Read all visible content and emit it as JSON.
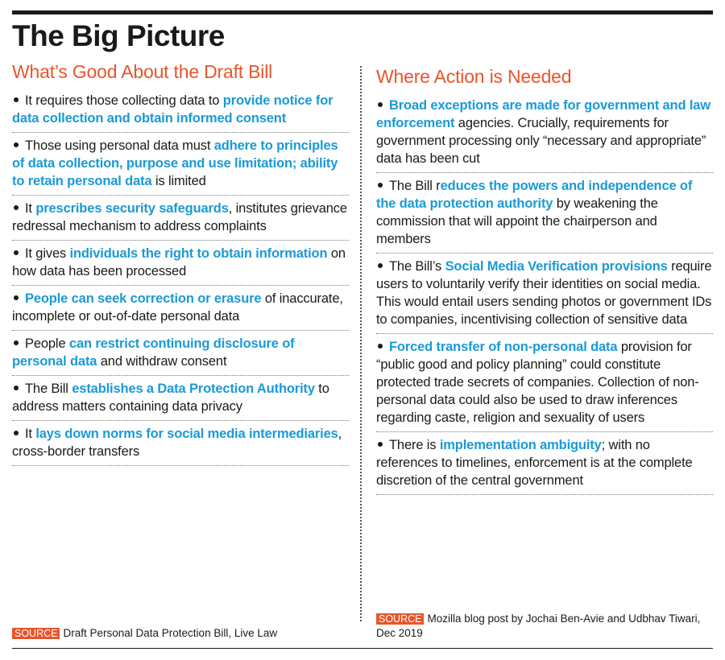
{
  "title": "The Big Picture",
  "columns": [
    {
      "heading": "What’s Good About the Draft Bill",
      "items": [
        [
          {
            "text": "It requires those collecting data to ",
            "highlight": false
          },
          {
            "text": "provide notice for data collection and obtain informed consent",
            "highlight": true
          }
        ],
        [
          {
            "text": "Those using personal data must ",
            "highlight": false
          },
          {
            "text": "adhere to principles of data collection, purpose and use limitation; ability to retain personal data",
            "highlight": true
          },
          {
            "text": " is limited",
            "highlight": false
          }
        ],
        [
          {
            "text": "It ",
            "highlight": false
          },
          {
            "text": "prescribes security safeguards",
            "highlight": true
          },
          {
            "text": ", institutes grievance redressal mechanism to address complaints",
            "highlight": false
          }
        ],
        [
          {
            "text": "It gives ",
            "highlight": false
          },
          {
            "text": "individuals the right to obtain information",
            "highlight": true
          },
          {
            "text": " on how data has been processed",
            "highlight": false
          }
        ],
        [
          {
            "text": "People can seek correction or erasure",
            "highlight": true
          },
          {
            "text": " of inaccurate, incomplete or out-of-date personal data",
            "highlight": false
          }
        ],
        [
          {
            "text": "People ",
            "highlight": false
          },
          {
            "text": "can restrict continuing disclosure of personal data",
            "highlight": true
          },
          {
            "text": " and withdraw consent",
            "highlight": false
          }
        ],
        [
          {
            "text": "The Bill ",
            "highlight": false
          },
          {
            "text": "establishes a Data Protection Authority",
            "highlight": true
          },
          {
            "text": " to address matters containing data privacy",
            "highlight": false
          }
        ],
        [
          {
            "text": "It ",
            "highlight": false
          },
          {
            "text": "lays down norms for social media intermediaries",
            "highlight": true
          },
          {
            "text": ", cross-border transfers",
            "highlight": false
          }
        ]
      ],
      "source": {
        "label": "SOURCE",
        "text": "Draft Personal Data Protection Bill, Live Law"
      }
    },
    {
      "heading": "Where Action is Needed",
      "items": [
        [
          {
            "text": "Broad exceptions are made for government and law enforcement",
            "highlight": true
          },
          {
            "text": " agencies. Crucially, requirements for government processing only “necessary and appropriate” data has been cut",
            "highlight": false
          }
        ],
        [
          {
            "text": "The Bill r",
            "highlight": false
          },
          {
            "text": "educes the powers and independence of the data protection authority",
            "highlight": true
          },
          {
            "text": " by weakening the commission that will appoint the chairperson and members",
            "highlight": false
          }
        ],
        [
          {
            "text": "The Bill’s ",
            "highlight": false
          },
          {
            "text": "Social Media Verification provisions",
            "highlight": true
          },
          {
            "text": " require users to voluntarily verify their identities on social media. This would entail users sending photos or government IDs to companies, incentivising collection of sensitive data",
            "highlight": false
          }
        ],
        [
          {
            "text": "Forced transfer of non-personal data",
            "highlight": true
          },
          {
            "text": " provision for “public good and policy planning” could constitute protected trade secrets of companies. Collection of non-personal data could also be used to draw inferences regarding caste, religion and sexuality of users",
            "highlight": false
          }
        ],
        [
          {
            "text": "There is ",
            "highlight": false
          },
          {
            "text": "implementation ambiguity",
            "highlight": true
          },
          {
            "text": "; with no references to timelines, enforcement is at the complete discretion of the central government",
            "highlight": false
          }
        ]
      ],
      "source": {
        "label": "SOURCE",
        "text": "Mozilla blog post by Jochai Ben-Avie and Udbhav Tiwari, Dec 2019"
      }
    }
  ]
}
